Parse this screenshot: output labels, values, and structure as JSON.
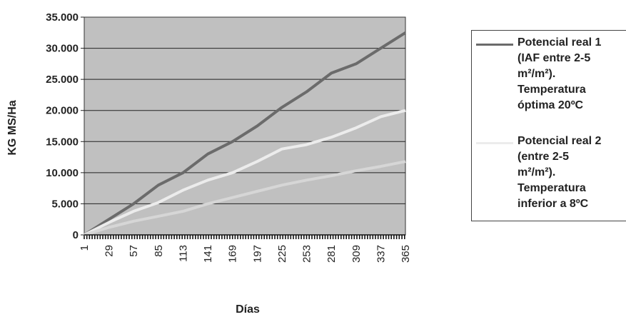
{
  "chart_data": {
    "type": "line",
    "xlabel": "Días",
    "ylabel": "KG MS/Ha",
    "ylim": [
      0,
      35000
    ],
    "yticks": [
      "0",
      "5.000",
      "10.000",
      "15.000",
      "20.000",
      "25.000",
      "30.000",
      "35.000"
    ],
    "xlim": [
      1,
      365
    ],
    "xticks": [
      "1",
      "29",
      "57",
      "85",
      "113",
      "141",
      "169",
      "197",
      "225",
      "253",
      "281",
      "309",
      "337",
      "365"
    ],
    "grid": "horizontal",
    "legend_position": "right",
    "plot_background": "#c0c0c0",
    "series": [
      {
        "name": "Potencial real 1 (IAF entre 2-5 m²/m²). Temperatura óptima 20ºC",
        "color": "#6b6b6b",
        "x": [
          1,
          29,
          57,
          85,
          113,
          141,
          169,
          197,
          225,
          253,
          281,
          309,
          337,
          365
        ],
        "y": [
          0,
          2500,
          5000,
          8000,
          10000,
          13000,
          15000,
          17500,
          20500,
          23000,
          26000,
          27500,
          30000,
          32500
        ]
      },
      {
        "name": "Potencial real 2 (entre 2-5 m²/m²). Temperatura inferior a 8ºC",
        "color": "#ececec",
        "x": [
          1,
          29,
          57,
          85,
          113,
          141,
          169,
          197,
          225,
          253,
          281,
          309,
          337,
          365
        ],
        "y": [
          0,
          2000,
          3800,
          5200,
          7200,
          8800,
          10000,
          11800,
          13800,
          14500,
          15700,
          17200,
          19000,
          20000
        ]
      },
      {
        "name": "",
        "color": "#d6d6d6",
        "x": [
          1,
          29,
          57,
          85,
          113,
          141,
          169,
          197,
          225,
          253,
          281,
          309,
          337,
          365
        ],
        "y": [
          0,
          1200,
          2200,
          3000,
          3800,
          5000,
          6000,
          7000,
          8000,
          8800,
          9500,
          10300,
          11000,
          11800
        ]
      }
    ]
  },
  "legend": {
    "items": [
      {
        "text": "Potencial real 1\n(IAF entre 2-5\nm²/m²).\nTemperatura\nóptima 20ºC",
        "color": "#6b6b6b"
      },
      {
        "text": "Potencial real 2\n(entre 2-5\nm²/m²).\nTemperatura\ninferior a 8ºC",
        "color": "#ececec"
      }
    ]
  }
}
